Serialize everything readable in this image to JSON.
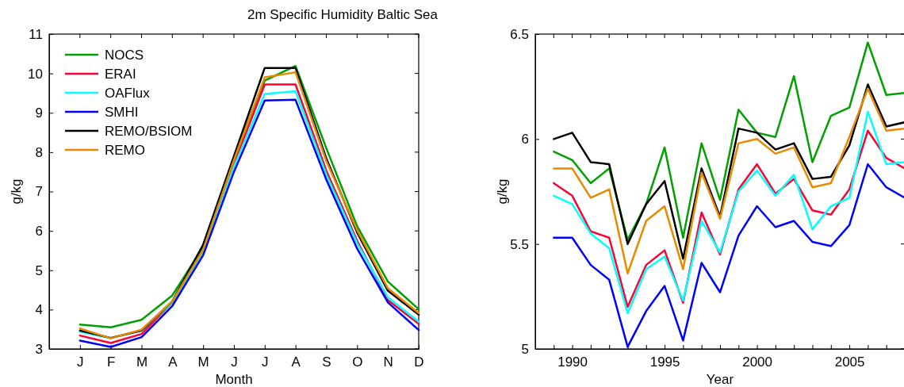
{
  "chart_data": [
    {
      "type": "line",
      "title": "2m Specific Humidity Baltic Sea",
      "xlabel": "Month",
      "ylabel": "g/kg",
      "categories": [
        "J",
        "F",
        "M",
        "A",
        "M",
        "J",
        "J",
        "A",
        "S",
        "O",
        "N",
        "D"
      ],
      "ylim": [
        3,
        11
      ],
      "yticks": [
        3,
        4,
        5,
        6,
        7,
        8,
        9,
        10,
        11
      ],
      "legend": "top left",
      "grid": false,
      "line_style": "solid",
      "series": [
        {
          "name": "NOCS",
          "color": "#00a000",
          "values": [
            3.62,
            3.55,
            3.74,
            4.36,
            5.59,
            7.87,
            9.82,
            10.19,
            8.1,
            6.12,
            4.71,
            4.01
          ]
        },
        {
          "name": "ERAI",
          "color": "#ff0033",
          "values": [
            3.34,
            3.15,
            3.38,
            4.18,
            5.45,
            7.7,
            9.72,
            9.72,
            7.53,
            5.75,
            4.24,
            3.64
          ]
        },
        {
          "name": "OAFlux",
          "color": "#00ffff",
          "values": [
            3.44,
            3.27,
            3.47,
            4.18,
            5.45,
            7.63,
            9.48,
            9.55,
            7.43,
            5.69,
            4.31,
            3.69
          ]
        },
        {
          "name": "SMHI",
          "color": "#0000ff",
          "values": [
            3.21,
            3.05,
            3.3,
            4.09,
            5.38,
            7.5,
            9.31,
            9.33,
            7.3,
            5.55,
            4.18,
            3.48
          ]
        },
        {
          "name": "REMO/BSIOM",
          "color": "#000000",
          "values": [
            3.47,
            3.28,
            3.47,
            4.21,
            5.65,
            7.9,
            10.14,
            10.14,
            7.84,
            5.96,
            4.48,
            3.87
          ]
        },
        {
          "name": "REMO",
          "color": "#e88a00",
          "values": [
            3.52,
            3.27,
            3.49,
            4.21,
            5.52,
            7.8,
            9.9,
            10.03,
            7.77,
            6.02,
            4.54,
            3.91
          ]
        }
      ]
    },
    {
      "type": "line",
      "xlabel": "Year",
      "ylabel": "g/kg",
      "x": [
        1989,
        1990,
        1991,
        1992,
        1993,
        1994,
        1995,
        1996,
        1997,
        1998,
        1999,
        2000,
        2001,
        2002,
        2003,
        2004,
        2005,
        2006,
        2007,
        2008
      ],
      "xlim": [
        1988,
        2008
      ],
      "xticks": [
        {
          "value": 1989,
          "label": null
        },
        1990,
        {
          "value": 1991,
          "label": null
        },
        {
          "value": 1992,
          "label": null
        },
        {
          "value": 1993,
          "label": null
        },
        {
          "value": 1994,
          "label": null
        },
        1995,
        {
          "value": 1996,
          "label": null
        },
        {
          "value": 1997,
          "label": null
        },
        {
          "value": 1998,
          "label": null
        },
        {
          "value": 1999,
          "label": null
        },
        2000,
        {
          "value": 2001,
          "label": null
        },
        {
          "value": 2002,
          "label": null
        },
        {
          "value": 2003,
          "label": null
        },
        {
          "value": 2004,
          "label": null
        },
        2005,
        {
          "value": 2006,
          "label": null
        },
        {
          "value": 2007,
          "label": null
        }
      ],
      "ylim": [
        5,
        6.5
      ],
      "yticks": [
        5,
        5.5,
        6,
        6.5
      ],
      "grid": false,
      "line_style": "solid",
      "series": [
        {
          "color": "#00a000",
          "values": [
            5.94,
            5.9,
            5.79,
            5.86,
            5.52,
            5.69,
            5.96,
            5.53,
            5.98,
            5.71,
            6.14,
            6.03,
            6.01,
            6.3,
            5.89,
            6.11,
            6.15,
            6.46,
            6.21,
            6.22
          ]
        },
        {
          "color": "#ff0033",
          "values": [
            5.79,
            5.73,
            5.56,
            5.53,
            5.2,
            5.4,
            5.47,
            5.22,
            5.65,
            5.45,
            5.76,
            5.88,
            5.74,
            5.81,
            5.66,
            5.64,
            5.76,
            6.04,
            5.91,
            5.86
          ]
        },
        {
          "color": "#00ffff",
          "values": [
            5.73,
            5.69,
            5.55,
            5.48,
            5.17,
            5.38,
            5.44,
            5.23,
            5.61,
            5.46,
            5.75,
            5.85,
            5.73,
            5.83,
            5.57,
            5.68,
            5.72,
            6.13,
            5.88,
            5.89
          ]
        },
        {
          "color": "#0000ff",
          "values": [
            5.53,
            5.53,
            5.4,
            5.33,
            5.01,
            5.18,
            5.3,
            5.04,
            5.41,
            5.27,
            5.54,
            5.68,
            5.58,
            5.61,
            5.51,
            5.49,
            5.59,
            5.88,
            5.77,
            5.72
          ]
        },
        {
          "color": "#000000",
          "values": [
            6.0,
            6.03,
            5.89,
            5.88,
            5.5,
            5.69,
            5.8,
            5.43,
            5.86,
            5.63,
            6.05,
            6.03,
            5.95,
            5.98,
            5.81,
            5.82,
            5.97,
            6.26,
            6.06,
            6.08
          ]
        },
        {
          "color": "#e88a00",
          "values": [
            5.86,
            5.86,
            5.72,
            5.76,
            5.36,
            5.61,
            5.68,
            5.38,
            5.84,
            5.62,
            5.98,
            6.0,
            5.93,
            5.96,
            5.77,
            5.79,
            6.01,
            6.24,
            6.04,
            6.05
          ]
        }
      ]
    }
  ]
}
